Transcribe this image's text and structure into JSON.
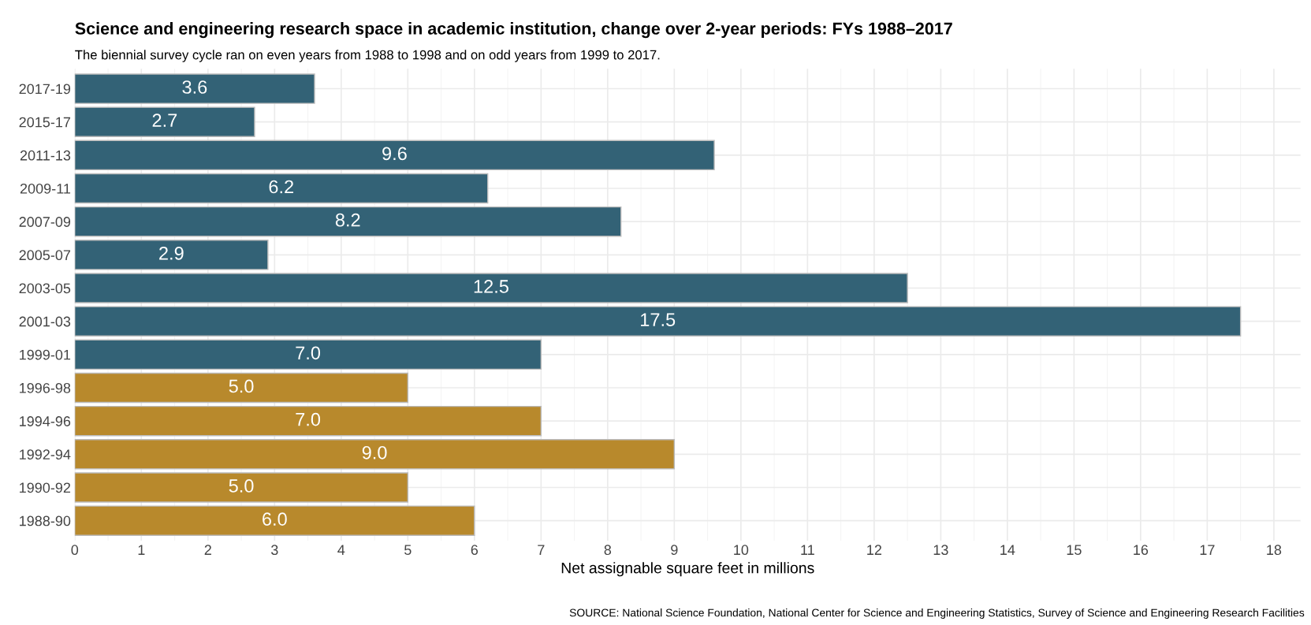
{
  "chart_data": {
    "type": "bar",
    "orientation": "horizontal",
    "title": "Science and engineering research space in academic institution, change over 2-year periods: FYs 1988–2017",
    "subtitle": "The biennial survey cycle ran on even years from 1988 to 1998 and on odd years from 1999 to 2017.",
    "xlabel": "Net assignable square feet in millions",
    "categories": [
      "2017-19",
      "2015-17",
      "2011-13",
      "2009-11",
      "2007-09",
      "2005-07",
      "2003-05",
      "2001-03",
      "1999-01",
      "1996-98",
      "1994-96",
      "1992-94",
      "1990-92",
      "1988-90"
    ],
    "values": [
      3.6,
      2.7,
      9.6,
      6.2,
      8.2,
      2.9,
      12.5,
      17.5,
      7.0,
      5.0,
      7.0,
      9.0,
      5.0,
      6.0
    ],
    "value_labels": [
      "3.6",
      "2.7",
      "9.6",
      "6.2",
      "8.2",
      "2.9",
      "12.5",
      "17.5",
      "7.0",
      "5.0",
      "7.0",
      "9.0",
      "5.0",
      "6.0"
    ],
    "colors": [
      "#336276",
      "#336276",
      "#336276",
      "#336276",
      "#336276",
      "#336276",
      "#336276",
      "#336276",
      "#336276",
      "#b8892c",
      "#b8892c",
      "#b8892c",
      "#b8892c",
      "#b8892c"
    ],
    "xlim": [
      0,
      18.4
    ],
    "xticks": [
      0,
      1,
      2,
      3,
      4,
      5,
      6,
      7,
      8,
      9,
      10,
      11,
      12,
      13,
      14,
      15,
      16,
      17,
      18
    ],
    "grid": true,
    "annotations": [
      "SOURCE: National Science Foundation, National Center for Science and Engineering Statistics, Survey of Science and Engineering Research Facilities"
    ]
  }
}
